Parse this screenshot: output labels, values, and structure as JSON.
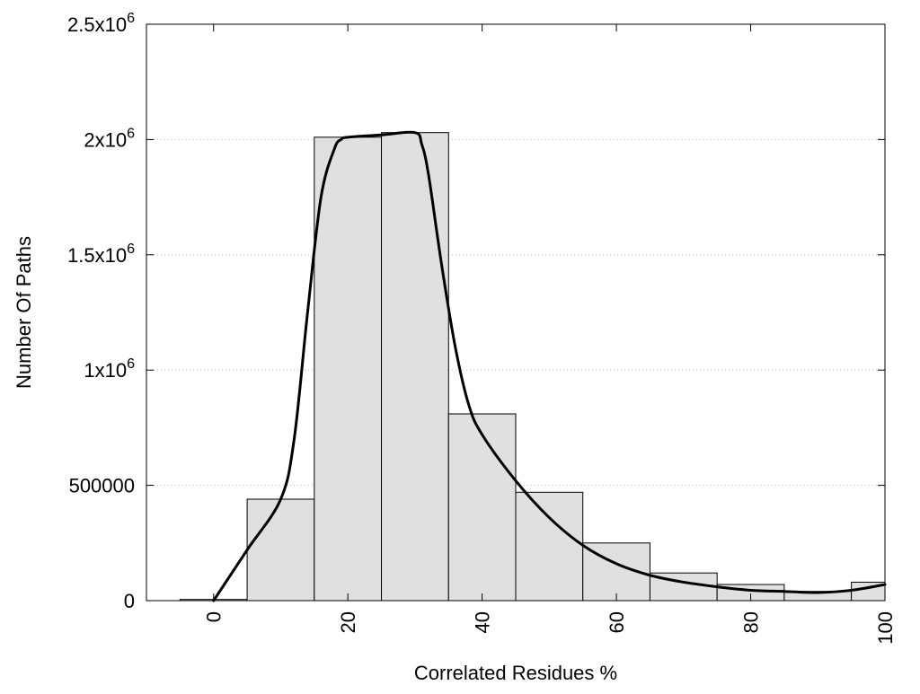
{
  "chart_data": {
    "type": "bar",
    "title": "",
    "xlabel": "Correlated Residues %",
    "ylabel": "Number Of Paths",
    "x_centers": [
      0,
      10,
      20,
      30,
      40,
      50,
      60,
      70,
      80,
      90,
      100
    ],
    "bin_width": 10,
    "values": [
      5000,
      440000,
      2010000,
      2030000,
      810000,
      470000,
      250000,
      120000,
      70000,
      40000,
      80000
    ],
    "xlim": [
      -10,
      100
    ],
    "ylim": [
      0,
      2500000
    ],
    "x_ticks": [
      {
        "value": 0,
        "label": "0"
      },
      {
        "value": 20,
        "label": "20"
      },
      {
        "value": 40,
        "label": "40"
      },
      {
        "value": 60,
        "label": "60"
      },
      {
        "value": 80,
        "label": "80"
      },
      {
        "value": 100,
        "label": "100"
      }
    ],
    "y_ticks": [
      {
        "value": 0,
        "mantissa": "0",
        "exp": ""
      },
      {
        "value": 500000,
        "mantissa": "500000",
        "exp": ""
      },
      {
        "value": 1000000,
        "mantissa": "1x10",
        "exp": "6"
      },
      {
        "value": 1500000,
        "mantissa": "1.5x10",
        "exp": "6"
      },
      {
        "value": 2000000,
        "mantissa": "2x10",
        "exp": "6"
      },
      {
        "value": 2500000,
        "mantissa": "2.5x10",
        "exp": "6"
      }
    ],
    "grid": "horizontal-dotted",
    "bar_color": "#e0e0e0",
    "bar_edge_color": "#000000",
    "curve_color": "#000000",
    "curve": {
      "x": [
        0,
        5,
        10,
        12,
        14,
        16,
        18,
        19,
        20,
        25,
        30,
        31,
        32,
        34,
        36,
        38,
        40,
        45,
        50,
        55,
        60,
        65,
        70,
        75,
        80,
        85,
        90,
        95,
        100
      ],
      "y": [
        0,
        220000,
        440000,
        700000,
        1250000,
        1750000,
        1960000,
        2000000,
        2010000,
        2020000,
        2030000,
        1980000,
        1850000,
        1450000,
        1100000,
        850000,
        720000,
        520000,
        360000,
        240000,
        160000,
        110000,
        80000,
        60000,
        45000,
        40000,
        35000,
        45000,
        70000
      ]
    }
  }
}
